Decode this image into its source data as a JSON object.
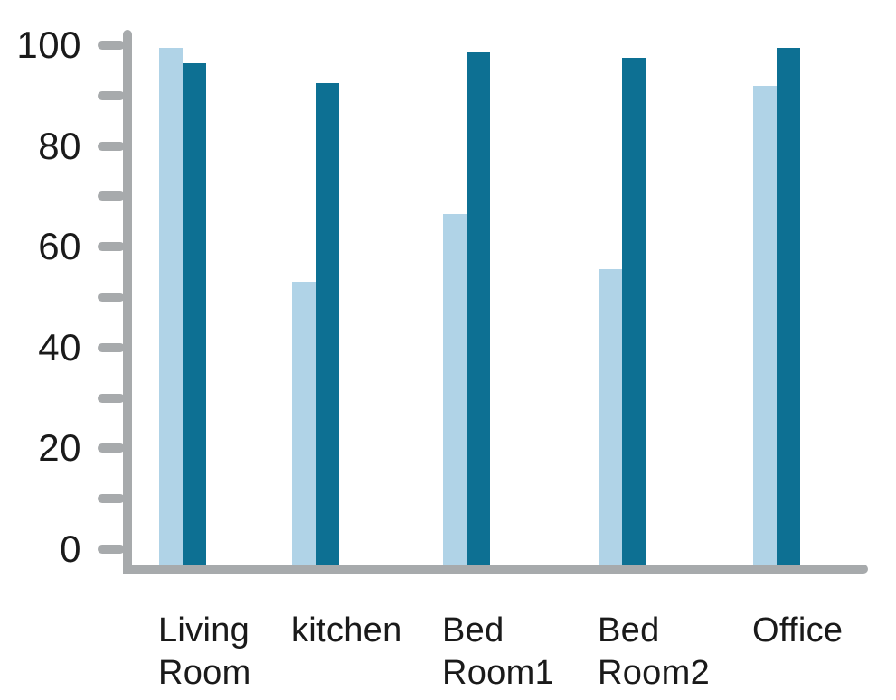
{
  "chart_data": {
    "type": "bar",
    "title": "",
    "xlabel": "",
    "ylabel": "",
    "categories": [
      "Living Room",
      "kitchen",
      "Bed Room1",
      "Bed Room2",
      "Office"
    ],
    "series": [
      {
        "name": "light-blue",
        "color": "#b0d3e7",
        "values": [
          99.5,
          53,
          66.5,
          55.5,
          92
        ]
      },
      {
        "name": "dark-teal",
        "color": "#0d7093",
        "values": [
          96.5,
          92.5,
          98.5,
          97.5,
          99.5
        ]
      }
    ],
    "ylim": [
      0,
      100
    ],
    "ytick_labels": [
      0,
      20,
      40,
      60,
      80,
      100
    ],
    "minor_tick_step": 10,
    "grid": false,
    "legend": false,
    "axis_color": "#a7aaac",
    "text_color": "#1a1a1a",
    "background": "#ffffff"
  }
}
